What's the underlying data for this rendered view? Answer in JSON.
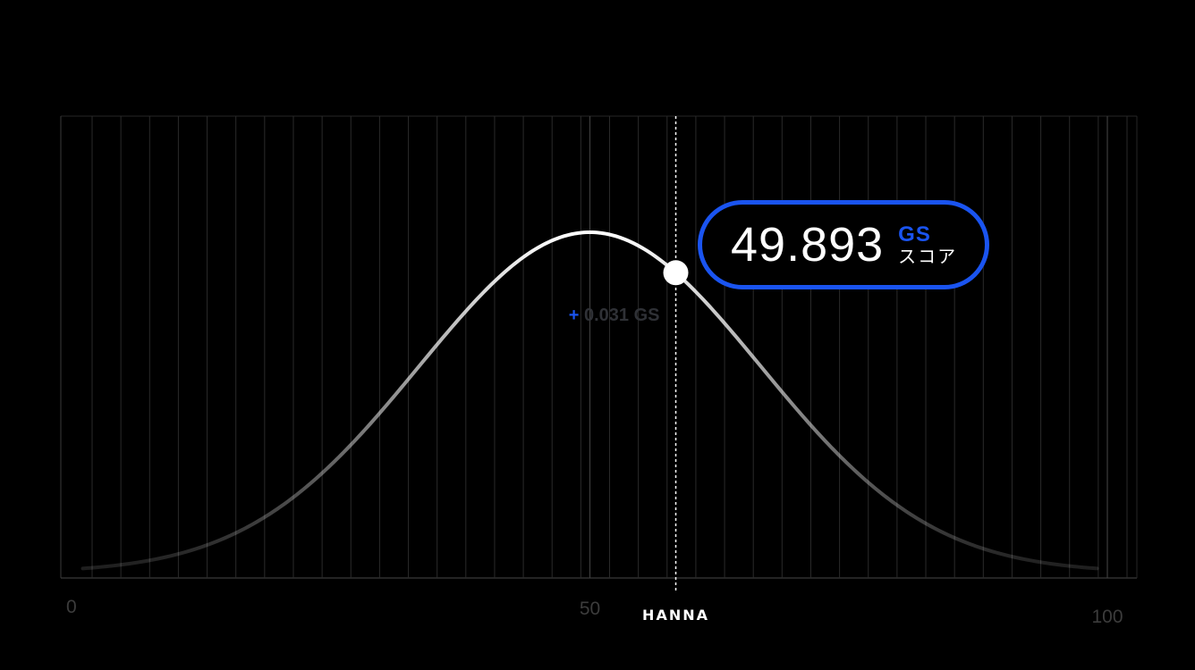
{
  "chart_data": {
    "type": "line",
    "title": "",
    "xlabel": "",
    "ylabel": "",
    "xlim": [
      0,
      100
    ],
    "x_ticks": [
      {
        "value": 0,
        "label": "0"
      },
      {
        "value": 50,
        "label": "50"
      },
      {
        "value": 100,
        "label": "100"
      }
    ],
    "distribution": {
      "kind": "normal",
      "mean": 50,
      "std": 16.5
    },
    "grid": true,
    "marker": {
      "name": "HANNA",
      "x": 58.3,
      "score": "49.893",
      "unit": "GS",
      "unit_sub": "スコア",
      "delta": {
        "sign": "+",
        "value": "0.031",
        "unit": "GS"
      }
    },
    "colors": {
      "background": "#000000",
      "accent": "#1a54f0",
      "curve": "#ffffff",
      "grid": "#2a2a2a",
      "tick_label": "#3c3c3c",
      "delta_text": "#2f3136"
    }
  }
}
